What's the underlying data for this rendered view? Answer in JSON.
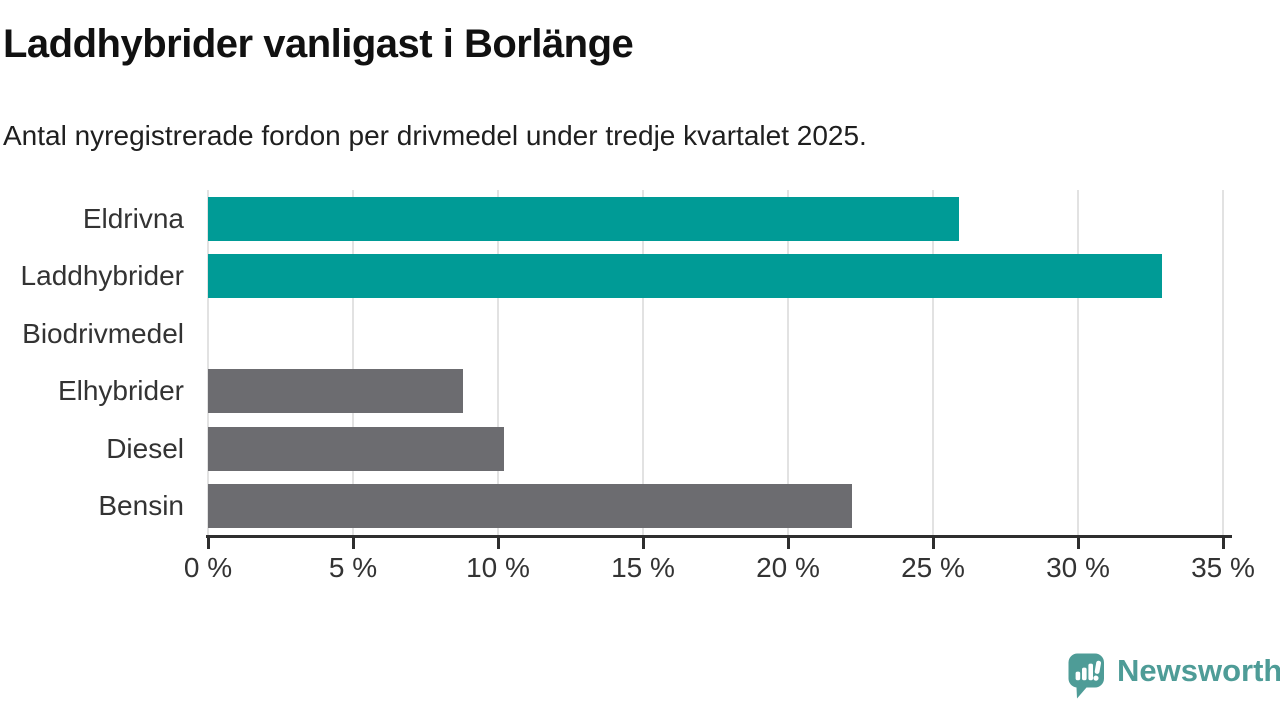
{
  "header": {
    "title": "Laddhybrider vanligast i Borlänge",
    "subtitle": "Antal nyregistrerade fordon per drivmedel under tredje kvartalet 2025."
  },
  "chart_data": {
    "type": "bar",
    "orientation": "horizontal",
    "title": "Laddhybrider vanligast i Borlänge",
    "subtitle": "Antal nyregistrerade fordon per drivmedel under tredje kvartalet 2025.",
    "categories": [
      "Eldrivna",
      "Laddhybrider",
      "Biodrivmedel",
      "Elhybrider",
      "Diesel",
      "Bensin"
    ],
    "values": [
      25.9,
      32.9,
      0,
      8.8,
      10.2,
      22.2
    ],
    "unit": "%",
    "xlabel": "",
    "ylabel": "",
    "xlim": [
      0,
      35
    ],
    "x_ticks": [
      0,
      5,
      10,
      15,
      20,
      25,
      30,
      35
    ],
    "x_tick_labels": [
      "0 %",
      "5 %",
      "10 %",
      "15 %",
      "20 %",
      "25 %",
      "30 %",
      "35 %"
    ],
    "bar_colors": [
      "#009b96",
      "#009b96",
      "#6c6c70",
      "#6c6c70",
      "#6c6c70",
      "#6c6c70"
    ],
    "highlight_color": "#009b96",
    "default_color": "#6c6c70",
    "grid": true,
    "gridline_color": "#e2e2e2",
    "axis_color": "#2e2e2e",
    "legend": null
  },
  "footer": {
    "brand": "Newsworthy",
    "brand_color": "#4e9c97",
    "brand_icon": "newsworthy-speech-bubble-barchart-icon"
  }
}
